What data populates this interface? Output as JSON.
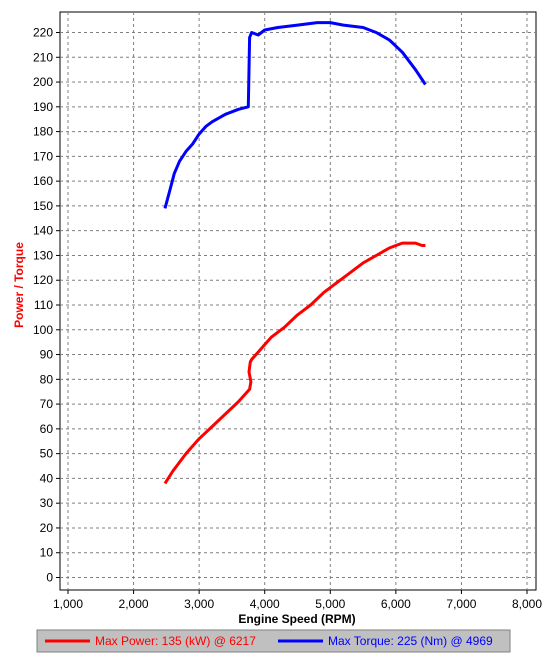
{
  "chart_data": {
    "type": "line",
    "xlabel": "Engine Speed (RPM)",
    "ylabel": "Power / Torque",
    "xlim": [
      1000,
      8000
    ],
    "ylim": [
      0,
      225
    ],
    "x_ticks": [
      "1,000",
      "2,000",
      "3,000",
      "4,000",
      "5,000",
      "6,000",
      "7,000",
      "8,000"
    ],
    "y_ticks": [
      "0",
      "10",
      "20",
      "30",
      "40",
      "50",
      "60",
      "70",
      "80",
      "90",
      "100",
      "110",
      "120",
      "130",
      "140",
      "150",
      "160",
      "170",
      "180",
      "190",
      "200",
      "210",
      "220"
    ],
    "grid": true,
    "legend_position": "bottom",
    "series": [
      {
        "name": "Max Power: 135 (kW) @ 6217",
        "color": "#ff0000",
        "x": [
          2480,
          2600,
          2800,
          3000,
          3200,
          3400,
          3600,
          3770,
          3790,
          3760,
          3780,
          3800,
          3900,
          4000,
          4100,
          4300,
          4500,
          4700,
          4900,
          5100,
          5300,
          5500,
          5700,
          5900,
          6000,
          6100,
          6200,
          6300,
          6400,
          6450
        ],
        "y": [
          38,
          43,
          50,
          56,
          61,
          66,
          71,
          76,
          79,
          83,
          87,
          88,
          91,
          94,
          97,
          101,
          106,
          110,
          115,
          119,
          123,
          127,
          130,
          133,
          134,
          135,
          135,
          135,
          134,
          134
        ]
      },
      {
        "name": "Max Torque: 225 (Nm) @ 4969",
        "color": "#0000ff",
        "x": [
          2480,
          2560,
          2620,
          2700,
          2800,
          2900,
          3000,
          3100,
          3200,
          3400,
          3600,
          3750,
          3760,
          3770,
          3800,
          3900,
          4000,
          4200,
          4500,
          4800,
          5000,
          5200,
          5500,
          5700,
          5900,
          6100,
          6300,
          6450
        ],
        "y": [
          149,
          157,
          163,
          168,
          172,
          175,
          179,
          182,
          184,
          187,
          189,
          190,
          205,
          218,
          220,
          219,
          221,
          222,
          223,
          224,
          224,
          223,
          222,
          220,
          217,
          212,
          205,
          199
        ]
      }
    ]
  }
}
